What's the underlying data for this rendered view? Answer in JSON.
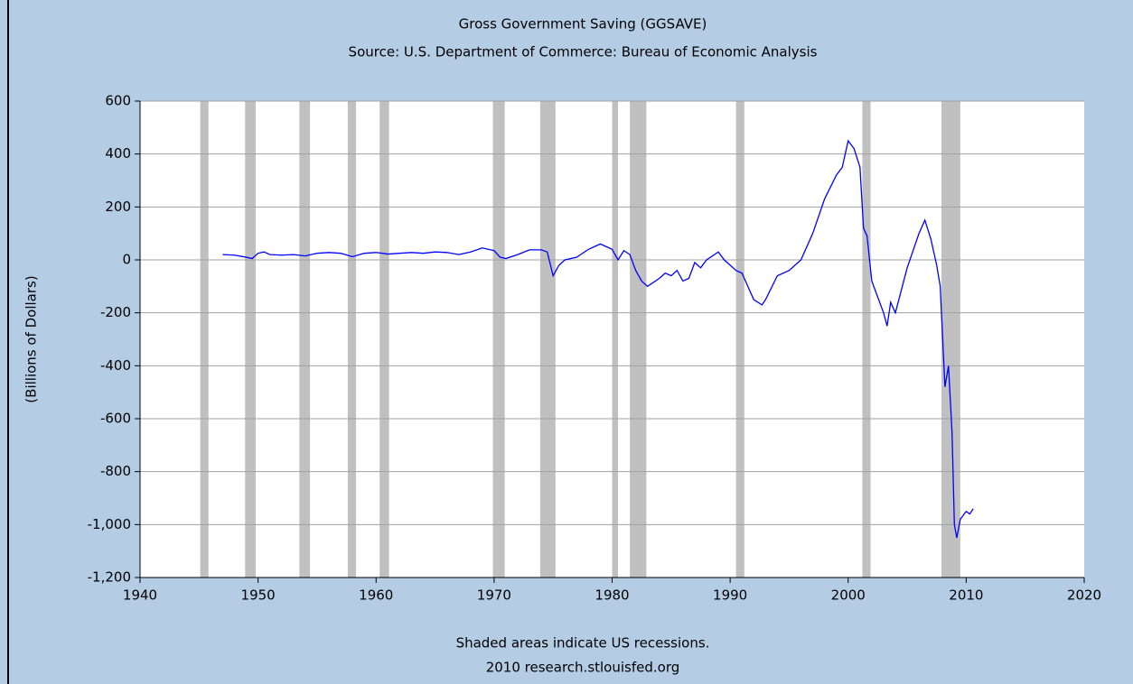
{
  "chart_data": {
    "type": "line",
    "title": "Gross Government Saving (GGSAVE)",
    "subtitle": "Source: U.S. Department of Commerce: Bureau of Economic Analysis",
    "y_label": "(Billions of Dollars)",
    "notes": [
      "Shaded areas indicate US recessions.",
      "2010 research.stlouisfed.org"
    ],
    "xlim": [
      1940,
      2020
    ],
    "xticks": [
      1940,
      1950,
      1960,
      1970,
      1980,
      1990,
      2000,
      2010,
      2020
    ],
    "ylim": [
      -1200,
      600
    ],
    "yticks": [
      {
        "value": -1200,
        "label": "-1,200"
      },
      {
        "value": -1000,
        "label": "-1,000"
      },
      -800,
      -600,
      -400,
      -200,
      0,
      200,
      400,
      600
    ],
    "grid": true,
    "recession_color": "#c0c0c0",
    "recessions": [
      [
        1945.1,
        1945.8
      ],
      [
        1948.9,
        1949.8
      ],
      [
        1953.5,
        1954.4
      ],
      [
        1957.6,
        1958.3
      ],
      [
        1960.3,
        1961.1
      ],
      [
        1969.9,
        1970.9
      ],
      [
        1973.9,
        1975.2
      ],
      [
        1980.0,
        1980.5
      ],
      [
        1981.5,
        1982.9
      ],
      [
        1990.5,
        1991.2
      ],
      [
        2001.2,
        2001.9
      ],
      [
        2007.9,
        2009.5
      ]
    ],
    "series": [
      {
        "name": "GGSAVE",
        "color": "#0000ff",
        "x": [
          1947,
          1948,
          1949,
          1949.5,
          1950,
          1950.5,
          1951,
          1952,
          1953,
          1954,
          1955,
          1956,
          1957,
          1958,
          1959,
          1960,
          1961,
          1962,
          1963,
          1964,
          1965,
          1966,
          1967,
          1968,
          1969,
          1970,
          1970.5,
          1971,
          1972,
          1973,
          1974,
          1974.5,
          1975,
          1975.5,
          1976,
          1977,
          1978,
          1979,
          1980,
          1980.5,
          1981,
          1981.5,
          1982,
          1982.5,
          1983,
          1984,
          1984.5,
          1985,
          1985.5,
          1986,
          1986.5,
          1987,
          1987.5,
          1988,
          1989,
          1989.5,
          1990,
          1990.5,
          1991,
          1992,
          1992.7,
          1993,
          1994,
          1995,
          1996,
          1997,
          1998,
          1999,
          1999.5,
          2000,
          2000.5,
          2001,
          2001.3,
          2001.6,
          2002,
          2003,
          2003.3,
          2003.6,
          2004,
          2005,
          2006,
          2006.5,
          2007,
          2007.5,
          2007.8,
          2008.2,
          2008.5,
          2008.8,
          2009,
          2009.2,
          2009.5,
          2010,
          2010.3,
          2010.6
        ],
        "values": [
          20,
          18,
          10,
          5,
          25,
          30,
          20,
          18,
          20,
          15,
          25,
          28,
          25,
          12,
          25,
          28,
          22,
          25,
          28,
          25,
          30,
          28,
          20,
          30,
          45,
          35,
          10,
          5,
          20,
          38,
          38,
          30,
          -60,
          -20,
          0,
          10,
          40,
          60,
          40,
          0,
          35,
          20,
          -40,
          -80,
          -100,
          -70,
          -50,
          -60,
          -40,
          -80,
          -70,
          -10,
          -30,
          0,
          30,
          0,
          -20,
          -40,
          -50,
          -150,
          -170,
          -150,
          -60,
          -40,
          0,
          100,
          230,
          320,
          350,
          450,
          420,
          350,
          120,
          90,
          -80,
          -200,
          -250,
          -160,
          -200,
          -30,
          100,
          150,
          80,
          -20,
          -100,
          -480,
          -400,
          -650,
          -1000,
          -1050,
          -980,
          -950,
          -960,
          -940
        ]
      }
    ]
  }
}
